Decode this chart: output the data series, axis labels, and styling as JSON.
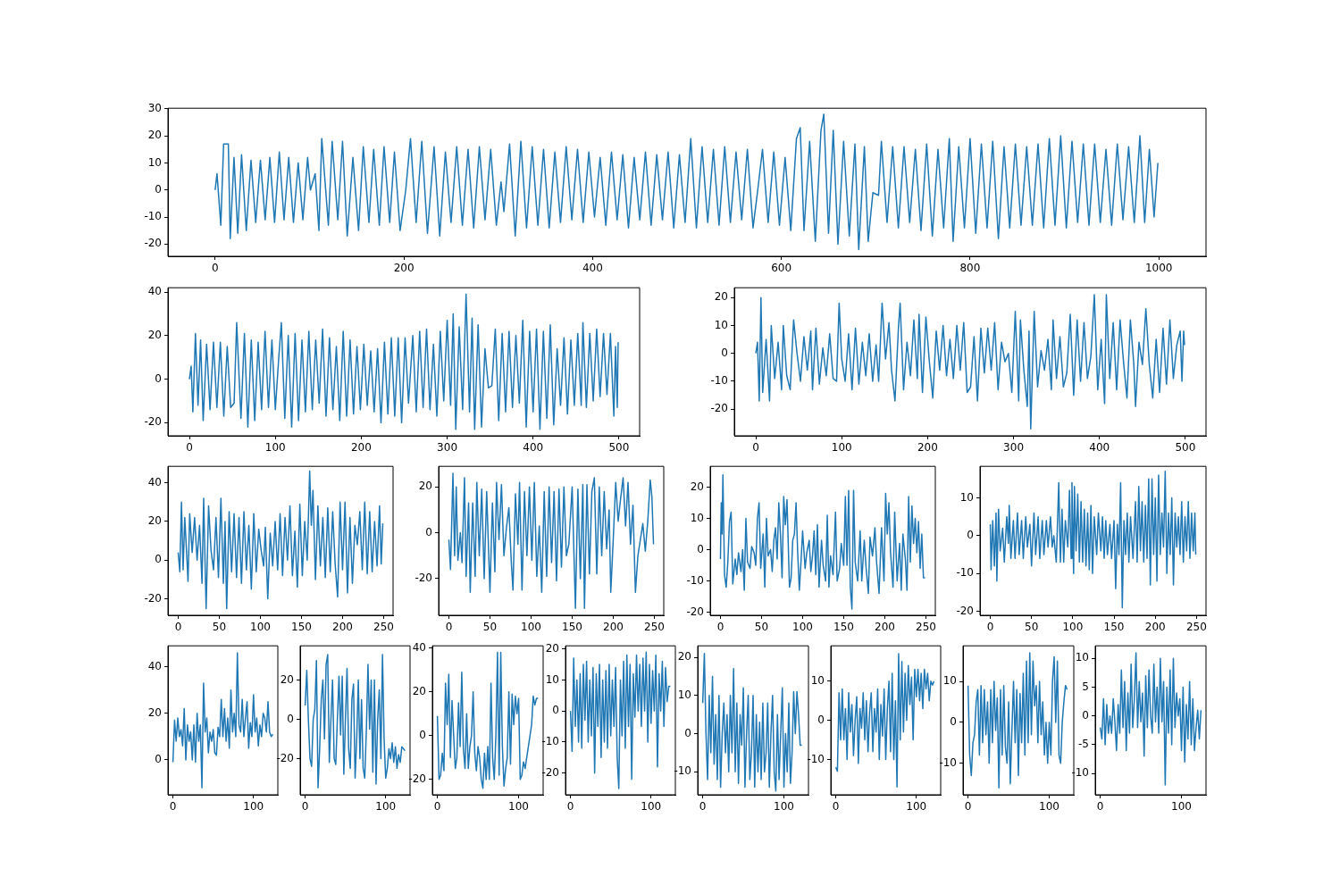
{
  "chart_data": [
    {
      "type": "line",
      "color": "#1f77b4",
      "xlim": [
        -50,
        1050
      ],
      "xticks": [
        0,
        200,
        400,
        600,
        800,
        1000
      ],
      "ylim": [
        -24.5,
        30.2
      ],
      "yticks": [
        -20,
        -10,
        0,
        10,
        20,
        30
      ],
      "x": [
        0,
        2,
        6,
        9,
        14,
        16,
        20,
        24,
        28,
        33,
        38,
        43,
        48,
        53,
        58,
        63,
        68,
        73,
        78,
        83,
        88,
        93,
        98,
        101,
        106,
        110,
        113,
        120,
        124,
        130,
        135,
        140,
        146,
        152,
        157,
        163,
        168,
        174,
        179,
        185,
        190,
        196,
        202,
        207,
        213,
        219,
        225,
        232,
        238,
        244,
        250,
        256,
        262,
        268,
        274,
        280,
        286,
        292,
        298,
        303,
        306,
        312,
        318,
        324,
        330,
        336,
        342,
        348,
        354,
        360,
        366,
        372,
        378,
        384,
        390,
        396,
        402,
        408,
        414,
        420,
        426,
        432,
        438,
        444,
        450,
        456,
        462,
        468,
        474,
        480,
        486,
        492,
        498,
        504,
        510,
        516,
        522,
        528,
        534,
        540,
        546,
        552,
        558,
        564,
        570,
        575,
        580,
        586,
        592,
        598,
        604,
        610,
        616,
        620,
        624,
        630,
        636,
        642,
        645,
        650,
        655,
        660,
        666,
        672,
        678,
        682,
        688,
        692,
        697,
        703,
        706,
        712,
        718,
        724,
        730,
        736,
        742,
        748,
        754,
        760,
        766,
        772,
        778,
        782,
        788,
        794,
        800,
        806,
        812,
        818,
        824,
        830,
        836,
        842,
        848,
        854,
        860,
        866,
        872,
        878,
        884,
        890,
        896,
        902,
        908,
        914,
        920,
        926,
        932,
        938,
        944,
        950,
        956,
        962,
        968,
        974,
        980,
        985,
        990,
        995,
        999
      ],
      "values": [
        0,
        6,
        -13,
        17,
        17,
        -18,
        12,
        -16,
        13,
        -15,
        11,
        -12,
        11,
        -11,
        12,
        -12,
        14,
        -11,
        12,
        -12,
        10,
        -11,
        12,
        0,
        6,
        -15,
        19,
        -13,
        18,
        -11,
        18,
        -17,
        12,
        -15,
        16,
        -12,
        15,
        -13,
        16,
        -12,
        14,
        -15,
        0,
        19,
        -12,
        18,
        -16,
        16,
        -17,
        14,
        -12,
        16,
        -13,
        15,
        -14,
        16,
        -11,
        15,
        -13,
        3,
        -8,
        17,
        -17,
        18,
        -14,
        16,
        -13,
        15,
        -14,
        14,
        -12,
        16,
        -11,
        15,
        -12,
        14,
        -10,
        12,
        -13,
        14,
        -11,
        13,
        -14,
        12,
        -11,
        14,
        -13,
        13,
        -11,
        14,
        -14,
        13,
        -12,
        19,
        -14,
        16,
        -12,
        15,
        -13,
        16,
        -12,
        14,
        -11,
        15,
        -14,
        0,
        15,
        -12,
        14,
        -13,
        12,
        -15,
        19,
        23,
        -15,
        18,
        -19,
        22,
        28,
        -16,
        22,
        -20,
        18,
        -17,
        17,
        -22,
        16,
        -19,
        -1,
        -2,
        18,
        -12,
        16,
        -14,
        16,
        -12,
        15,
        -15,
        17,
        -17,
        15,
        -14,
        19,
        -19,
        16,
        -14,
        19,
        -16,
        17,
        -14,
        18,
        -18,
        16,
        -14,
        17,
        -13,
        16,
        -13,
        17,
        -14,
        19,
        -13,
        20,
        -14,
        18,
        -12,
        17,
        -13,
        17,
        -12,
        15,
        -13,
        17,
        -11,
        16,
        -12,
        20,
        -12,
        15,
        -10,
        10
      ]
    },
    {
      "type": "line",
      "color": "#1f77b4",
      "xlim": [
        -25,
        524
      ],
      "xticks": [
        0,
        100,
        200,
        300,
        400,
        500
      ],
      "ylim": [
        -26,
        42
      ],
      "yticks": [
        -20,
        0,
        20,
        40
      ],
      "x": [
        0,
        2,
        4,
        7,
        10,
        13,
        16,
        20,
        24,
        28,
        32,
        36,
        40,
        44,
        48,
        52,
        55,
        60,
        64,
        68,
        72,
        76,
        80,
        84,
        88,
        92,
        96,
        100,
        104,
        107,
        111,
        115,
        119,
        123,
        127,
        131,
        135,
        139,
        143,
        147,
        151,
        155,
        159,
        163,
        167,
        171,
        175,
        179,
        183,
        187,
        191,
        195,
        199,
        203,
        207,
        211,
        215,
        219,
        223,
        227,
        231,
        235,
        239,
        243,
        247,
        251,
        255,
        260,
        264,
        268,
        272,
        276,
        280,
        284,
        288,
        292,
        296,
        300,
        304,
        307,
        310,
        314,
        318,
        322,
        326,
        329,
        332,
        336,
        340,
        344,
        348,
        352,
        356,
        360,
        364,
        368,
        372,
        376,
        380,
        384,
        388,
        392,
        396,
        400,
        404,
        408,
        412,
        416,
        420,
        424,
        428,
        432,
        436,
        440,
        444,
        448,
        452,
        456,
        458,
        462,
        466,
        470,
        474,
        478,
        482,
        486,
        490,
        494,
        496,
        498,
        499
      ],
      "values": [
        0,
        6,
        -15,
        21,
        -12,
        18,
        -19,
        16,
        -14,
        17,
        -13,
        17,
        -17,
        15,
        -13,
        -11,
        26,
        -18,
        21,
        -22,
        18,
        -19,
        17,
        -14,
        22,
        -13,
        18,
        -14,
        10,
        26,
        -18,
        20,
        -22,
        21,
        -19,
        18,
        -15,
        22,
        -14,
        18,
        -11,
        23,
        -17,
        19,
        -14,
        15,
        -19,
        22,
        -17,
        18,
        -16,
        15,
        -14,
        16,
        -12,
        13,
        -15,
        14,
        -20,
        17,
        -16,
        19,
        -17,
        19,
        -20,
        19,
        -11,
        20,
        -15,
        22,
        -13,
        23,
        -14,
        16,
        -17,
        22,
        -10,
        27,
        -12,
        30,
        -23,
        24,
        -14,
        39,
        -15,
        28,
        -23,
        25,
        -22,
        14,
        -4,
        -3,
        23,
        -19,
        21,
        -15,
        22,
        -13,
        20,
        -11,
        27,
        -22,
        22,
        -15,
        23,
        -23,
        22,
        -18,
        25,
        -21,
        14,
        -12,
        19,
        -16,
        18,
        -12,
        21,
        -12,
        26,
        -13,
        21,
        -10,
        23,
        -8,
        21,
        -7,
        21,
        -17,
        15,
        -13,
        17
      ]
    },
    {
      "type": "line",
      "color": "#1f77b4",
      "xlim": [
        -25,
        524
      ],
      "xticks": [
        0,
        100,
        200,
        300,
        400,
        500
      ],
      "ylim": [
        -29.5,
        23.5
      ],
      "yticks": [
        -20,
        -10,
        0,
        10,
        20
      ],
      "x": [
        0,
        2,
        4,
        6,
        8,
        12,
        16,
        18,
        22,
        26,
        30,
        32,
        36,
        40,
        44,
        48,
        52,
        56,
        60,
        64,
        66,
        70,
        74,
        78,
        82,
        86,
        90,
        94,
        97,
        100,
        104,
        108,
        112,
        116,
        120,
        124,
        128,
        132,
        136,
        140,
        143,
        147,
        151,
        155,
        158,
        162,
        166,
        168,
        172,
        176,
        180,
        184,
        188,
        190,
        194,
        198,
        202,
        206,
        210,
        214,
        218,
        222,
        226,
        230,
        234,
        238,
        242,
        246,
        250,
        254,
        258,
        262,
        266,
        270,
        274,
        278,
        282,
        286,
        290,
        294,
        298,
        302,
        306,
        308,
        312,
        316,
        318,
        320,
        324,
        328,
        332,
        336,
        340,
        344,
        346,
        350,
        354,
        358,
        362,
        366,
        370,
        374,
        378,
        382,
        386,
        390,
        394,
        398,
        402,
        406,
        408,
        412,
        416,
        420,
        424,
        428,
        432,
        436,
        440,
        442,
        446,
        450,
        454,
        458,
        462,
        466,
        470,
        474,
        478,
        482,
        486,
        490,
        494,
        496,
        498,
        499
      ],
      "values": [
        0,
        4,
        -17,
        20,
        -14,
        5,
        -17,
        10,
        -9,
        4,
        -13,
        10,
        -8,
        -13,
        12,
        0,
        -10,
        6,
        -6,
        8,
        -13,
        9,
        -11,
        2,
        -8,
        7,
        -9,
        -10,
        18,
        -2,
        -10,
        7,
        -13,
        9,
        -11,
        4,
        -8,
        7,
        -10,
        3,
        -10,
        18,
        -2,
        11,
        -6,
        -17,
        9,
        18,
        -13,
        4,
        -8,
        12,
        -9,
        14,
        -14,
        13,
        -3,
        -16,
        8,
        -6,
        10,
        -8,
        5,
        -9,
        10,
        -6,
        11,
        -14,
        -12,
        6,
        -17,
        9,
        -7,
        9,
        -6,
        11,
        -13,
        4,
        -3,
        0,
        -14,
        15,
        -17,
        12,
        -6,
        -19,
        8,
        -27,
        15,
        -12,
        1,
        -6,
        5,
        -13,
        12,
        -9,
        6,
        -12,
        -7,
        14,
        -15,
        12,
        -10,
        11,
        -9,
        -1,
        21,
        -13,
        5,
        -18,
        21,
        -9,
        11,
        -13,
        12,
        -3,
        -16,
        12,
        -4,
        -19,
        4,
        -4,
        16,
        -4,
        -16,
        5,
        -14,
        9,
        -11,
        12,
        -9,
        3,
        8,
        -10,
        8,
        3
      ]
    },
    {
      "type": "line",
      "color": "#1f77b4",
      "xlim": [
        -12.45,
        261.45
      ],
      "xticks": [
        0,
        50,
        100,
        150,
        200,
        250
      ],
      "ylim": [
        -28.5,
        48.5
      ],
      "yticks": [
        -20,
        0,
        20,
        40
      ],
      "x": [
        0,
        2,
        4,
        6,
        8,
        10,
        12,
        14,
        17,
        20,
        23,
        26,
        29,
        31,
        34,
        37,
        40,
        43,
        46,
        49,
        52,
        55,
        57,
        59,
        62,
        65,
        68,
        71,
        74,
        77,
        80,
        83,
        86,
        89,
        92,
        95,
        98,
        101,
        104,
        106,
        109,
        112,
        115,
        118,
        121,
        124,
        127,
        130,
        133,
        136,
        139,
        142,
        145,
        148,
        151,
        154,
        157,
        160,
        162,
        164,
        167,
        170,
        173,
        176,
        179,
        182,
        185,
        188,
        191,
        194,
        197,
        200,
        203,
        206,
        209,
        212,
        215,
        218,
        221,
        224,
        227,
        230,
        233,
        236,
        239,
        242,
        245,
        247,
        249
      ],
      "values": [
        4,
        -6,
        30,
        -5,
        22,
        6,
        -11,
        24,
        4,
        22,
        0,
        18,
        -12,
        32,
        -25,
        28,
        5,
        -5,
        22,
        -9,
        32,
        -12,
        20,
        -25,
        25,
        -6,
        24,
        -9,
        22,
        -12,
        25,
        -5,
        18,
        -15,
        24,
        -6,
        16,
        5,
        -3,
        17,
        -20,
        14,
        -3,
        20,
        -5,
        24,
        -8,
        22,
        0,
        28,
        -8,
        15,
        -14,
        29,
        -8,
        20,
        0,
        46,
        18,
        36,
        -10,
        28,
        -3,
        22,
        -9,
        27,
        -6,
        25,
        -2,
        -19,
        30,
        -5,
        30,
        -17,
        22,
        -12,
        18,
        8,
        25,
        -5,
        30,
        -7,
        25,
        -6,
        20,
        -3,
        28,
        -2,
        19
      ]
    },
    {
      "type": "line",
      "color": "#1f77b4",
      "xlim": [
        -12.45,
        261.45
      ],
      "xticks": [
        0,
        50,
        100,
        150,
        200,
        250
      ],
      "ylim": [
        -36,
        29
      ],
      "yticks": [
        -20,
        0,
        20
      ],
      "x": [
        0,
        2,
        4,
        5,
        7,
        9,
        11,
        14,
        16,
        19,
        21,
        24,
        26,
        29,
        32,
        34,
        37,
        40,
        43,
        46,
        48,
        50,
        53,
        56,
        58,
        61,
        64,
        67,
        70,
        73,
        76,
        78,
        81,
        84,
        86,
        89,
        92,
        95,
        98,
        101,
        104,
        107,
        110,
        113,
        116,
        119,
        122,
        125,
        128,
        131,
        134,
        137,
        140,
        143,
        146,
        150,
        154,
        157,
        160,
        163,
        165,
        168,
        171,
        174,
        177,
        180,
        183,
        186,
        189,
        192,
        195,
        197,
        200,
        203,
        206,
        209,
        212,
        215,
        218,
        221,
        224,
        227,
        230,
        233,
        236,
        239,
        242,
        245,
        247,
        249
      ],
      "values": [
        -3,
        -16,
        12,
        26,
        -10,
        20,
        -12,
        0,
        -13,
        24,
        -19,
        13,
        -26,
        13,
        -19,
        22,
        -10,
        19,
        -20,
        18,
        -4,
        -26,
        13,
        -17,
        22,
        -3,
        21,
        -10,
        2,
        11,
        -13,
        -25,
        17,
        -5,
        22,
        -25,
        18,
        -10,
        20,
        -12,
        22,
        -19,
        3,
        -26,
        18,
        -19,
        20,
        -13,
        18,
        -21,
        19,
        -15,
        20,
        -10,
        -5,
        20,
        -33,
        19,
        -20,
        21,
        -33,
        21,
        -18,
        18,
        24,
        -18,
        20,
        -10,
        18,
        -7,
        10,
        -26,
        -3,
        22,
        5,
        15,
        24,
        3,
        22,
        -5,
        12,
        -26,
        -10,
        -3,
        4,
        -8,
        5,
        23,
        16,
        -5
      ]
    },
    {
      "type": "line",
      "color": "#1f77b4",
      "xlim": [
        -12.45,
        261.45
      ],
      "xticks": [
        0,
        50,
        100,
        150,
        200,
        250
      ],
      "ylim": [
        -21,
        26.7
      ],
      "yticks": [
        -20,
        -10,
        0,
        10,
        20
      ],
      "x": [
        0,
        1,
        2,
        3,
        5,
        7,
        9,
        11,
        13,
        15,
        18,
        20,
        22,
        25,
        27,
        29,
        31,
        33,
        36,
        38,
        41,
        43,
        45,
        47,
        49,
        52,
        54,
        56,
        58,
        61,
        63,
        65,
        67,
        69,
        71,
        73,
        75,
        77,
        79,
        81,
        84,
        86,
        88,
        90,
        92,
        94,
        96,
        98,
        100,
        103,
        105,
        108,
        110,
        112,
        114,
        116,
        118,
        120,
        123,
        125,
        128,
        130,
        132,
        134,
        137,
        140,
        142,
        145,
        147,
        150,
        152,
        154,
        156,
        158,
        160,
        162,
        164,
        167,
        170,
        172,
        175,
        177,
        180,
        182,
        185,
        188,
        190,
        193,
        196,
        199,
        201,
        203,
        205,
        207,
        210,
        212,
        215,
        218,
        220,
        222,
        225,
        227,
        229,
        231,
        233,
        235,
        237,
        239,
        241,
        243,
        245,
        247,
        249
      ],
      "values": [
        -3,
        15,
        5,
        24,
        -8,
        -12,
        -4,
        9,
        12,
        -11,
        -3,
        -8,
        -1,
        -7,
        0,
        -13,
        10,
        -4,
        -6,
        1,
        -1,
        -5,
        10,
        15,
        -6,
        5,
        -12,
        10,
        -2,
        0,
        -7,
        3,
        7,
        -3,
        15,
        5,
        -9,
        17,
        8,
        16,
        -12,
        -9,
        3,
        5,
        15,
        -1,
        -13,
        -4,
        6,
        -6,
        -1,
        3,
        -7,
        -2,
        6,
        -8,
        8,
        -12,
        3,
        -5,
        -10,
        11,
        -12,
        -2,
        -8,
        12,
        -10,
        -6,
        2,
        -5,
        17,
        -5,
        19,
        -12,
        -19,
        19,
        -4,
        -10,
        6,
        -10,
        3,
        -5,
        -14,
        4,
        -2,
        7,
        -4,
        -14,
        7,
        -10,
        18,
        5,
        15,
        -1,
        -12,
        12,
        -10,
        2,
        -13,
        5,
        -3,
        -13,
        17,
        -4,
        14,
        2,
        10,
        -1,
        9,
        -6,
        5,
        -9,
        -9
      ]
    },
    {
      "type": "line",
      "color": "#1f77b4",
      "xlim": [
        -12.45,
        261.45
      ],
      "xticks": [
        0,
        50,
        100,
        150,
        200,
        250
      ],
      "ylim": [
        -21,
        18.3
      ],
      "yticks": [
        -20,
        -10,
        0,
        10
      ],
      "x": [
        0,
        1,
        3,
        5,
        7,
        8,
        10,
        12,
        15,
        17,
        20,
        22,
        23,
        25,
        28,
        30,
        33,
        35,
        38,
        40,
        43,
        45,
        48,
        50,
        53,
        55,
        58,
        60,
        63,
        65,
        68,
        70,
        73,
        75,
        77,
        80,
        83,
        85,
        87,
        89,
        91,
        94,
        96,
        98,
        99,
        101,
        102,
        104,
        106,
        108,
        110,
        112,
        114,
        116,
        118,
        120,
        122,
        124,
        126,
        129,
        131,
        134,
        136,
        138,
        140,
        142,
        145,
        147,
        150,
        152,
        154,
        156,
        158,
        160,
        162,
        164,
        166,
        168,
        170,
        173,
        176,
        178,
        180,
        182,
        184,
        186,
        188,
        190,
        192,
        194,
        196,
        198,
        200,
        202,
        204,
        206,
        208,
        210,
        212,
        214,
        216,
        218,
        220,
        222,
        224,
        226,
        228,
        230,
        232,
        234,
        236,
        238,
        240,
        242,
        244,
        246,
        248,
        249
      ],
      "values": [
        3,
        -9,
        4,
        -8,
        6,
        -12,
        7,
        -4,
        2,
        -7,
        5,
        -2,
        8,
        -6,
        4,
        -6,
        6,
        -5,
        4,
        -6,
        5,
        -3,
        3,
        -8,
        6,
        -5,
        5,
        -6,
        4,
        -5,
        4,
        -3,
        5,
        -3,
        0,
        -7,
        14,
        -7,
        7,
        -7,
        4,
        -3,
        12,
        -6,
        14,
        -10,
        13,
        -4,
        11,
        -7,
        9,
        -7,
        7,
        -8,
        6,
        -9,
        8,
        -10,
        5,
        -5,
        6,
        -4,
        5,
        -6,
        4,
        -5,
        3,
        -6,
        4,
        -14,
        3,
        -5,
        14,
        -19,
        4,
        -5,
        6,
        -7,
        5,
        -6,
        9,
        -7,
        13,
        -4,
        9,
        -7,
        8,
        -6,
        15,
        -13,
        15,
        -5,
        10,
        -12,
        16,
        -5,
        6,
        -3,
        17,
        -10,
        6,
        -5,
        10,
        -13,
        6,
        -3,
        5,
        -5,
        9,
        -7,
        5,
        -4,
        9,
        -6,
        6,
        -4,
        6,
        -5
      ]
    },
    {
      "type": "line",
      "color": "#1f77b4",
      "xlim": [
        -6.2,
        130.2
      ],
      "xticks": [
        0,
        100
      ],
      "ylim": [
        -15,
        49
      ],
      "yticks": [
        0,
        20,
        40
      ],
      "x": [
        0,
        2,
        4,
        6,
        8,
        10,
        12,
        14,
        16,
        18,
        20,
        22,
        24,
        26,
        28,
        30,
        32,
        34,
        36,
        38,
        40,
        42,
        44,
        46,
        48,
        50,
        52,
        54,
        56,
        58,
        60,
        62,
        64,
        66,
        68,
        70,
        72,
        74,
        76,
        78,
        80,
        82,
        84,
        86,
        88,
        90,
        92,
        94,
        96,
        98,
        100,
        102,
        104,
        106,
        108,
        110,
        112,
        114,
        116,
        118,
        120,
        122,
        124
      ],
      "values": [
        -1,
        17,
        8,
        18,
        10,
        13,
        6,
        22,
        0,
        15,
        8,
        12,
        0,
        15,
        -1,
        20,
        8,
        15,
        -12,
        33,
        12,
        18,
        3,
        12,
        8,
        13,
        3,
        2,
        14,
        10,
        26,
        10,
        22,
        8,
        18,
        5,
        30,
        12,
        20,
        10,
        46,
        15,
        12,
        26,
        10,
        18,
        25,
        5,
        16,
        10,
        28,
        12,
        18,
        6,
        15,
        10,
        20,
        18,
        12,
        25,
        12,
        10,
        11
      ]
    },
    {
      "type": "line",
      "color": "#1f77b4",
      "xlim": [
        -6.2,
        130.2
      ],
      "xticks": [
        0,
        100
      ],
      "ylim": [
        -38.5,
        37.5
      ],
      "yticks": [
        -20,
        0,
        20
      ],
      "x": [
        0,
        2,
        4,
        6,
        8,
        10,
        12,
        14,
        16,
        18,
        20,
        22,
        24,
        26,
        28,
        30,
        32,
        34,
        36,
        38,
        40,
        42,
        44,
        46,
        48,
        50,
        52,
        54,
        56,
        58,
        60,
        62,
        64,
        66,
        68,
        70,
        72,
        74,
        76,
        78,
        80,
        82,
        84,
        86,
        88,
        90,
        92,
        94,
        96,
        98,
        100,
        102,
        104,
        106,
        108,
        110,
        112,
        114,
        116,
        118,
        120,
        122,
        124
      ],
      "values": [
        7,
        25,
        0,
        -20,
        -24,
        0,
        5,
        30,
        -35,
        -15,
        10,
        20,
        -10,
        28,
        33,
        -22,
        0,
        20,
        -20,
        -23,
        0,
        22,
        -8,
        22,
        -28,
        0,
        26,
        -15,
        -25,
        10,
        18,
        -30,
        -10,
        20,
        -20,
        10,
        -25,
        -30,
        -5,
        28,
        -5,
        20,
        -27,
        20,
        -33,
        0,
        15,
        -20,
        33,
        -10,
        -30,
        -25,
        -15,
        -20,
        -12,
        -22,
        -14,
        -25,
        -18,
        -22,
        -14,
        -15,
        -16
      ]
    },
    {
      "type": "line",
      "color": "#1f77b4",
      "xlim": [
        -6.2,
        130.2
      ],
      "xticks": [
        0,
        100
      ],
      "ylim": [
        -27,
        41
      ],
      "yticks": [
        -20,
        0,
        20,
        40
      ],
      "x": [
        0,
        2,
        4,
        6,
        8,
        10,
        12,
        14,
        16,
        18,
        20,
        22,
        24,
        26,
        28,
        30,
        32,
        34,
        36,
        38,
        40,
        42,
        44,
        46,
        48,
        50,
        52,
        54,
        56,
        58,
        60,
        62,
        64,
        66,
        68,
        70,
        72,
        74,
        76,
        78,
        80,
        82,
        84,
        86,
        88,
        90,
        92,
        94,
        96,
        98,
        100,
        102,
        104,
        106,
        108,
        110,
        112,
        114,
        116,
        118,
        120,
        122,
        124
      ],
      "values": [
        9,
        -20,
        -18,
        -8,
        -16,
        24,
        5,
        28,
        -10,
        16,
        0,
        -15,
        -10,
        15,
        -5,
        29,
        -6,
        -15,
        10,
        -15,
        -5,
        0,
        20,
        -8,
        -16,
        -5,
        -10,
        -20,
        -24,
        -8,
        -20,
        -5,
        -20,
        24,
        -10,
        -20,
        0,
        38,
        -18,
        38,
        -5,
        -23,
        -15,
        -10,
        20,
        -13,
        19,
        5,
        18,
        10,
        17,
        -20,
        -18,
        -12,
        -15,
        -10,
        -5,
        0,
        5,
        18,
        14,
        17,
        17
      ]
    },
    {
      "type": "line",
      "color": "#1f77b4",
      "xlim": [
        -6.2,
        130.2
      ],
      "xticks": [
        0,
        100
      ],
      "ylim": [
        -27,
        21
      ],
      "yticks": [
        -20,
        -10,
        0,
        10,
        20
      ],
      "x": [
        0,
        2,
        4,
        6,
        8,
        10,
        12,
        14,
        16,
        18,
        20,
        22,
        24,
        26,
        28,
        30,
        32,
        34,
        36,
        38,
        40,
        42,
        44,
        46,
        48,
        50,
        52,
        54,
        56,
        58,
        60,
        62,
        64,
        66,
        68,
        70,
        72,
        74,
        76,
        78,
        80,
        82,
        84,
        86,
        88,
        90,
        92,
        94,
        96,
        98,
        100,
        102,
        104,
        106,
        108,
        110,
        112,
        114,
        116,
        118,
        120,
        122,
        124
      ],
      "values": [
        0,
        -13,
        17,
        -5,
        10,
        -10,
        12,
        -12,
        15,
        -3,
        16,
        -10,
        10,
        -8,
        14,
        -20,
        12,
        -5,
        15,
        -15,
        10,
        -10,
        13,
        -12,
        15,
        -8,
        10,
        -5,
        14,
        -15,
        -25,
        10,
        -8,
        16,
        -12,
        18,
        -5,
        15,
        -22,
        12,
        -2,
        18,
        0,
        15,
        -5,
        17,
        0,
        19,
        -10,
        15,
        -4,
        13,
        0,
        18,
        -18,
        12,
        0,
        16,
        -5,
        14,
        3,
        8,
        8
      ]
    },
    {
      "type": "line",
      "color": "#1f77b4",
      "xlim": [
        -6.2,
        130.2
      ],
      "xticks": [
        0,
        100
      ],
      "ylim": [
        -16,
        23
      ],
      "yticks": [
        -10,
        0,
        10,
        20
      ],
      "x": [
        0,
        2,
        4,
        6,
        8,
        10,
        12,
        14,
        16,
        18,
        20,
        22,
        24,
        26,
        28,
        30,
        32,
        34,
        36,
        38,
        40,
        42,
        44,
        46,
        48,
        50,
        52,
        54,
        56,
        58,
        60,
        62,
        64,
        66,
        68,
        70,
        72,
        74,
        76,
        78,
        80,
        82,
        84,
        86,
        88,
        90,
        92,
        94,
        96,
        98,
        100,
        102,
        104,
        106,
        108,
        110,
        112,
        114,
        116,
        118,
        120,
        122
      ],
      "values": [
        8,
        21,
        0,
        -12,
        10,
        -5,
        15,
        -8,
        5,
        -12,
        10,
        -14,
        0,
        8,
        -5,
        5,
        -10,
        10,
        -5,
        17,
        -10,
        8,
        -13,
        5,
        -3,
        12,
        -14,
        0,
        10,
        -12,
        -5,
        10,
        -14,
        5,
        -10,
        3,
        -12,
        8,
        -10,
        -5,
        8,
        -14,
        0,
        10,
        -10,
        -15,
        5,
        -12,
        0,
        12,
        -14,
        0,
        -10,
        8,
        -13,
        -5,
        11,
        0,
        11,
        5,
        -3,
        -3
      ]
    },
    {
      "type": "line",
      "color": "#1f77b4",
      "xlim": [
        -6.2,
        130.2
      ],
      "xticks": [
        0,
        100
      ],
      "ylim": [
        -19,
        19
      ],
      "yticks": [
        -10,
        0,
        10
      ],
      "x": [
        0,
        2,
        4,
        6,
        8,
        10,
        12,
        14,
        16,
        18,
        20,
        22,
        24,
        26,
        28,
        30,
        32,
        34,
        36,
        38,
        40,
        42,
        44,
        46,
        48,
        50,
        52,
        54,
        56,
        58,
        60,
        62,
        64,
        66,
        68,
        70,
        72,
        74,
        76,
        78,
        80,
        82,
        84,
        86,
        88,
        90,
        92,
        94,
        96,
        98,
        100,
        102,
        104,
        106,
        108,
        110,
        112,
        114,
        116,
        118,
        120,
        122
      ],
      "values": [
        -12,
        -13,
        7,
        -5,
        8,
        -5,
        3,
        -10,
        7,
        -3,
        4,
        -9,
        0,
        6,
        -11,
        3,
        -2,
        7,
        -5,
        5,
        -8,
        2,
        7,
        -8,
        3,
        -3,
        8,
        -10,
        4,
        -4,
        8,
        -10,
        3,
        10,
        -8,
        12,
        -10,
        5,
        -17,
        17,
        -5,
        15,
        -3,
        12,
        0,
        14,
        4,
        11,
        -5,
        13,
        6,
        13,
        5,
        12,
        3,
        13,
        8,
        12,
        5,
        10,
        9,
        10
      ]
    },
    {
      "type": "line",
      "color": "#1f77b4",
      "xlim": [
        -6.2,
        130.2
      ],
      "xticks": [
        0,
        100
      ],
      "ylim": [
        -17.7,
        18.7
      ],
      "yticks": [
        -10,
        0,
        10
      ],
      "x": [
        0,
        2,
        4,
        6,
        8,
        10,
        12,
        14,
        16,
        18,
        20,
        22,
        24,
        26,
        28,
        30,
        32,
        34,
        36,
        38,
        40,
        42,
        44,
        46,
        48,
        50,
        52,
        54,
        56,
        58,
        60,
        62,
        64,
        66,
        68,
        70,
        72,
        74,
        76,
        78,
        80,
        82,
        84,
        86,
        88,
        90,
        92,
        94,
        96,
        98,
        100,
        102,
        104,
        106,
        108,
        110,
        112,
        114,
        116,
        118,
        120,
        122
      ],
      "values": [
        9,
        -8,
        -13,
        -5,
        -3,
        5,
        8,
        -8,
        9,
        -5,
        8,
        -3,
        5,
        -10,
        8,
        -5,
        10,
        -2,
        6,
        -16,
        8,
        -8,
        9,
        -6,
        -10,
        5,
        -15,
        -2,
        10,
        -5,
        8,
        -13,
        7,
        -5,
        12,
        -8,
        15,
        -5,
        17,
        -3,
        15,
        4,
        9,
        -5,
        10,
        -3,
        5,
        -8,
        0,
        -10,
        0,
        -8,
        10,
        16,
        0,
        15,
        -8,
        -10,
        0,
        5,
        9,
        8
      ]
    },
    {
      "type": "line",
      "color": "#1f77b4",
      "xlim": [
        -6.2,
        130.2
      ],
      "xticks": [
        0,
        100
      ],
      "ylim": [
        -13.7,
        12.2
      ],
      "yticks": [
        -10,
        -5,
        0,
        5,
        10
      ],
      "x": [
        0,
        2,
        4,
        6,
        8,
        10,
        12,
        14,
        16,
        18,
        20,
        22,
        24,
        26,
        28,
        30,
        32,
        34,
        36,
        38,
        40,
        42,
        44,
        46,
        48,
        50,
        52,
        54,
        56,
        58,
        60,
        62,
        64,
        66,
        68,
        70,
        72,
        74,
        76,
        78,
        80,
        82,
        84,
        86,
        88,
        90,
        92,
        94,
        96,
        98,
        100,
        102,
        104,
        106,
        108,
        110,
        112,
        114,
        116,
        118,
        120,
        122,
        124
      ],
      "values": [
        -2,
        -4,
        3,
        -5,
        2,
        -3,
        0,
        -3,
        3,
        -1,
        -6,
        2,
        -3,
        8,
        -2,
        6,
        -6,
        4,
        -3,
        9,
        -2,
        3,
        11,
        -2,
        6,
        -1,
        4,
        -7,
        7,
        -2,
        8,
        0,
        -3,
        9,
        -1,
        5,
        -3,
        10,
        -1,
        6,
        -12,
        5,
        -3,
        8,
        -5,
        10,
        -2,
        4,
        0,
        3,
        -6,
        5,
        -8,
        2,
        -4,
        6,
        -5,
        3,
        -6,
        -2,
        1,
        -4,
        1
      ]
    }
  ]
}
